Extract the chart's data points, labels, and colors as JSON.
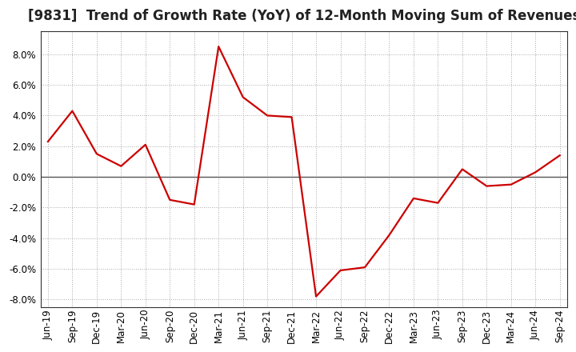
{
  "title": "[9831]  Trend of Growth Rate (YoY) of 12-Month Moving Sum of Revenues",
  "x_labels": [
    "Jun-19",
    "Sep-19",
    "Dec-19",
    "Mar-20",
    "Jun-20",
    "Sep-20",
    "Dec-20",
    "Mar-21",
    "Jun-21",
    "Sep-21",
    "Dec-21",
    "Mar-22",
    "Jun-22",
    "Sep-22",
    "Dec-22",
    "Mar-23",
    "Jun-23",
    "Sep-23",
    "Dec-23",
    "Mar-24",
    "Jun-24",
    "Sep-24"
  ],
  "y_values": [
    2.3,
    4.3,
    1.5,
    0.7,
    2.1,
    -1.5,
    -1.8,
    8.5,
    5.2,
    4.0,
    3.9,
    -7.8,
    -6.1,
    -5.9,
    -3.8,
    -1.4,
    -1.7,
    0.5,
    -0.6,
    -0.5,
    0.3,
    1.4
  ],
  "line_color": "#cc0000",
  "line_width": 1.6,
  "ylim": [
    -8.5,
    9.5
  ],
  "yticks": [
    -8.0,
    -6.0,
    -4.0,
    -2.0,
    0.0,
    2.0,
    4.0,
    6.0,
    8.0
  ],
  "grid_color": "#aaaaaa",
  "background_color": "#ffffff",
  "title_fontsize": 12,
  "tick_fontsize": 8.5,
  "title_color": "#222222"
}
